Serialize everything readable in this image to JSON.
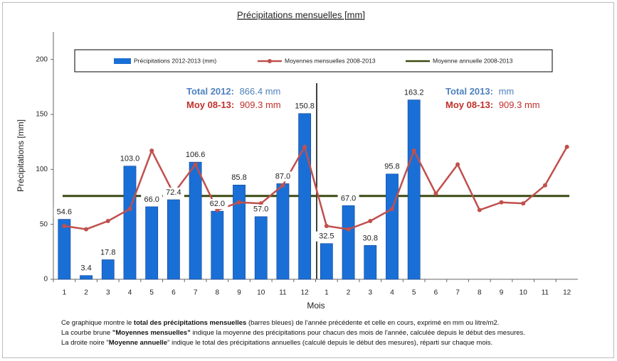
{
  "chart_data": {
    "type": "bar",
    "title": "Précipitations mensuelles [mm]",
    "y_label": "Précipitations [mm]",
    "x_label": "Mois",
    "categories": [
      "1",
      "2",
      "3",
      "4",
      "5",
      "6",
      "7",
      "8",
      "9",
      "10",
      "11",
      "12",
      "1",
      "2",
      "3",
      "4",
      "5",
      "6",
      "7",
      "8",
      "9",
      "10",
      "11",
      "12"
    ],
    "ylim": [
      0,
      225
    ],
    "yticks": [
      0,
      50,
      100,
      150,
      200
    ],
    "series": [
      {
        "name": "Précipitations  2012-2013  (mm)",
        "type": "bar",
        "color": "#1a6fd6",
        "values": [
          54.6,
          3.4,
          17.8,
          103.0,
          66.0,
          72.4,
          106.6,
          62.0,
          85.8,
          57.0,
          87.0,
          150.8,
          32.5,
          67.0,
          30.8,
          95.8,
          163.2,
          null,
          null,
          null,
          null,
          null,
          null,
          null
        ],
        "value_labels": [
          "54.6",
          "3.4",
          "17.8",
          "103.0",
          "66.0",
          "72.4",
          "106.6",
          "62.0",
          "85.8",
          "57.0",
          "87.0",
          "150.8",
          "32.5",
          "67.0",
          "30.8",
          "95.8",
          "163.2",
          null,
          null,
          null,
          null,
          null,
          null,
          null
        ]
      },
      {
        "name": "Moyennes mensuelles  2008-2013",
        "type": "line",
        "color": "#c0504d",
        "values": [
          48.5,
          45.5,
          53,
          64,
          117,
          78,
          104.5,
          63,
          70,
          69,
          85.5,
          120.5,
          48.5,
          45.5,
          53,
          64,
          117,
          78,
          104.5,
          63,
          70,
          69,
          85.5,
          120.5
        ]
      },
      {
        "name": "Moyenne annuelle  2008-2013",
        "type": "hline",
        "color": "#3b4a12",
        "value": 75.8
      }
    ],
    "annotations": [
      {
        "label": "Total 2012:",
        "text": "866.4 mm",
        "color": "#4f81bd"
      },
      {
        "label": "Moy 08-13:",
        "text": "909.3 mm",
        "color": "#c0302b"
      },
      {
        "label": "Total 2013:",
        "text": "mm",
        "color": "#4f81bd"
      },
      {
        "label": "Moy 08-13:",
        "text": "909.3 mm",
        "color": "#c0302b"
      }
    ],
    "notes": [
      [
        "Ce graphique montre le ",
        "total des précipitations mensuelles",
        " (barres bleues) de l'année précédente et celle en cours, exprimé en mm ou litre/m2."
      ],
      [
        "La courbe brune ",
        "\"Moyennes mensuelles\"",
        " indique la moyenne des précipitations pour chacun des mois de l'année, calculée depuis le début des mesures."
      ],
      [
        "La droite noire \"",
        "Moyenne annuelle",
        "\" indique le total des précipitations annuelles (calculé depuis le début des mesures), réparti sur chaque mois."
      ]
    ]
  }
}
